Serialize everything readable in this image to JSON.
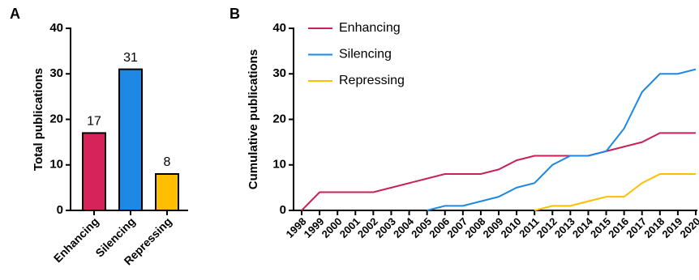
{
  "chart_data": [
    {
      "type": "bar",
      "panel": "A",
      "ylabel": "Total publications",
      "categories": [
        "Enhancing",
        "Silencing",
        "Repressing"
      ],
      "values": [
        17,
        31,
        8
      ],
      "colors": [
        "#d6245a",
        "#1e88e5",
        "#ffbf00"
      ],
      "ylim": [
        0,
        40
      ],
      "yticks": [
        0,
        10,
        20,
        30,
        40
      ]
    },
    {
      "type": "line",
      "panel": "B",
      "ylabel": "Cumulative publications",
      "x": [
        1998,
        1999,
        2000,
        2001,
        2002,
        2003,
        2004,
        2005,
        2006,
        2007,
        2008,
        2009,
        2010,
        2011,
        2012,
        2013,
        2014,
        2015,
        2016,
        2017,
        2018,
        2019,
        2020
      ],
      "series": [
        {
          "name": "Enhancing",
          "color": "#c8205a",
          "values": [
            0,
            4,
            4,
            4,
            4,
            5,
            6,
            7,
            8,
            8,
            8,
            9,
            11,
            12,
            12,
            12,
            12,
            13,
            14,
            15,
            17,
            17,
            17
          ]
        },
        {
          "name": "Silencing",
          "color": "#1e88e5",
          "values": [
            null,
            null,
            null,
            null,
            null,
            null,
            null,
            0,
            1,
            1,
            2,
            3,
            5,
            6,
            10,
            12,
            12,
            13,
            18,
            26,
            30,
            30,
            31
          ]
        },
        {
          "name": "Repressing",
          "color": "#ffbf00",
          "values": [
            null,
            null,
            null,
            null,
            null,
            null,
            null,
            null,
            null,
            null,
            null,
            null,
            null,
            0,
            1,
            1,
            2,
            3,
            3,
            6,
            8,
            8,
            8
          ]
        }
      ],
      "xlim": [
        1998,
        2020
      ],
      "xticks": [
        1998,
        1999,
        2000,
        2001,
        2002,
        2003,
        2004,
        2005,
        2006,
        2007,
        2008,
        2009,
        2010,
        2011,
        2012,
        2013,
        2014,
        2015,
        2016,
        2017,
        2018,
        2019,
        2020
      ],
      "ylim": [
        0,
        40
      ],
      "yticks": [
        0,
        10,
        20,
        30,
        40
      ],
      "legend": "upper-left"
    }
  ]
}
